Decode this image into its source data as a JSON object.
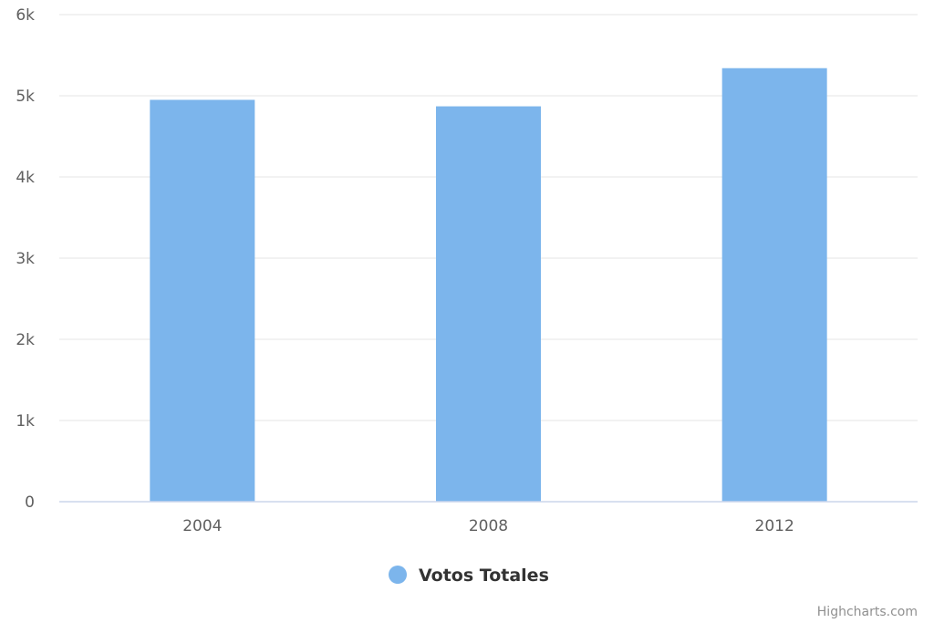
{
  "chart_data": {
    "type": "bar",
    "categories": [
      "2004",
      "2008",
      "2012"
    ],
    "series": [
      {
        "name": "Votos Totales",
        "values": [
          4950,
          4870,
          5340
        ],
        "color": "#7cb5ec"
      }
    ],
    "ylim": [
      0,
      6000
    ],
    "yticks": [
      {
        "value": 0,
        "label": "0"
      },
      {
        "value": 1000,
        "label": "1k"
      },
      {
        "value": 2000,
        "label": "2k"
      },
      {
        "value": 3000,
        "label": "3k"
      },
      {
        "value": 4000,
        "label": "4k"
      },
      {
        "value": 5000,
        "label": "5k"
      },
      {
        "value": 6000,
        "label": "6k"
      }
    ],
    "grid": true,
    "legend_position": "bottom-center",
    "gridline_color": "#e6e6e6",
    "axis_line_color": "#ccd6eb"
  },
  "credits": "Highcharts.com"
}
